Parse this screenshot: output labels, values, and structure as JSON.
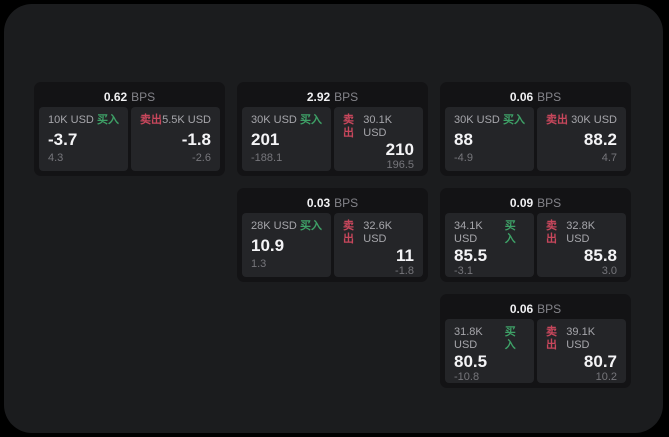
{
  "labels": {
    "bps_unit": "BPS",
    "buy": "买入",
    "sell": "卖出"
  },
  "colors": {
    "page_background": "#1b1c1e",
    "card_background": "#131315",
    "panel_background": "#242528",
    "buy_accent": "#3ea167",
    "sell_accent": "#c8475c",
    "primary_text": "#f4f4f6",
    "muted_text": "#a6a6ab",
    "faint_text": "#76767b"
  },
  "cards": [
    {
      "bps": "0.62",
      "buy": {
        "amount": "10K USD",
        "price": "-3.7",
        "delta": "4.3"
      },
      "sell": {
        "amount": "5.5K USD",
        "price": "-1.8",
        "delta": "-2.6"
      }
    },
    {
      "bps": "2.92",
      "buy": {
        "amount": "30K USD",
        "price": "201",
        "delta": "-188.1"
      },
      "sell": {
        "amount": "30.1K USD",
        "price": "210",
        "delta": "196.5"
      }
    },
    {
      "bps": "0.06",
      "buy": {
        "amount": "30K USD",
        "price": "88",
        "delta": "-4.9"
      },
      "sell": {
        "amount": "30K USD",
        "price": "88.2",
        "delta": "4.7"
      }
    },
    {
      "bps": "0.03",
      "buy": {
        "amount": "28K USD",
        "price": "10.9",
        "delta": "1.3"
      },
      "sell": {
        "amount": "32.6K USD",
        "price": "11",
        "delta": "-1.8"
      }
    },
    {
      "bps": "0.09",
      "buy": {
        "amount": "34.1K USD",
        "price": "85.5",
        "delta": "-3.1"
      },
      "sell": {
        "amount": "32.8K USD",
        "price": "85.8",
        "delta": "3.0"
      }
    },
    {
      "bps": "0.06",
      "buy": {
        "amount": "31.8K USD",
        "price": "80.5",
        "delta": "-10.8"
      },
      "sell": {
        "amount": "39.1K USD",
        "price": "80.7",
        "delta": "10.2"
      }
    }
  ]
}
